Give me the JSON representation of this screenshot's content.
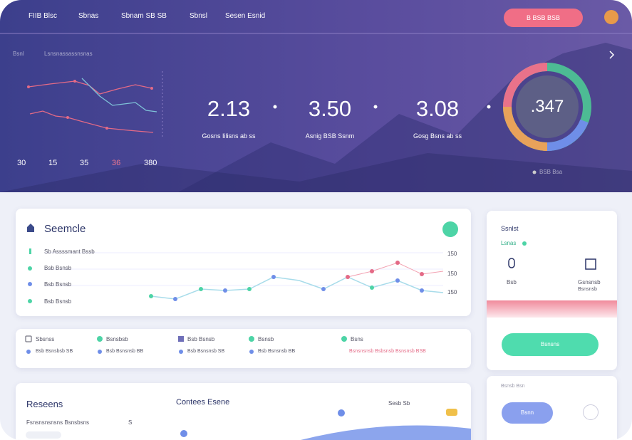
{
  "nav": {
    "brand": "FIIB Blsc",
    "items": [
      "Sbnas",
      "Sbnam SB SB",
      "Sbnsl",
      "Sesen Esnid"
    ],
    "button": "B BSB BSB"
  },
  "hero": {
    "chart_title": "Bsnl",
    "chart_subtitle": "Lsnsnassassnsnas",
    "chart_labels": [
      "30",
      "15",
      "35",
      "36",
      "380"
    ],
    "stats": [
      {
        "value": "2.13",
        "label": "Gosns Iilisns ab ss"
      },
      {
        "value": "3.50",
        "label": "Asnig BSB Ssnm"
      },
      {
        "value": "3.08",
        "label": "Gosg Bsns ab ss"
      }
    ],
    "gauge": ".347",
    "gauge_legend": "BSB Bsa"
  },
  "card_main": {
    "title": "Seemcle",
    "rows": [
      "Sb Assssmant Bssb",
      "Bsb Bsnsb",
      "Bsb Bsnsb",
      "Bsb Bsnsb"
    ],
    "right_labels": [
      "150",
      "150",
      "150"
    ]
  },
  "card_filters": {
    "row1": [
      "Sbsnss",
      "Bsnsbsb",
      "Bsb Bsnsb",
      "Bsnsb",
      "Bsns"
    ],
    "row2": [
      "Bsb Bsnsbsb SB",
      "Bsb Bsnsnsb BB",
      "Bsb Bsnsnsb SB",
      "Bsb Bsnsnsb BB",
      "Bsnsnsnsb Bsbsnsb Bsnsnsb BSB"
    ]
  },
  "card_bottom": {
    "title": "Reseens",
    "subtitle": "Fsnsnsnsnsns Bsnsbsns",
    "subtitle_mark": "S",
    "title2": "Contees Esene",
    "label": "Sesb Sb"
  },
  "side_top": {
    "title": "Ssnlst",
    "subtitle": "Lsnas",
    "items": [
      "Bsb",
      "Gsnsnsb"
    ],
    "item_sub": "Bsnsnsb",
    "button": "Bsnsns"
  },
  "side_bottom": {
    "title": "Bsnsb Bsn",
    "button": "Bsnn"
  }
}
